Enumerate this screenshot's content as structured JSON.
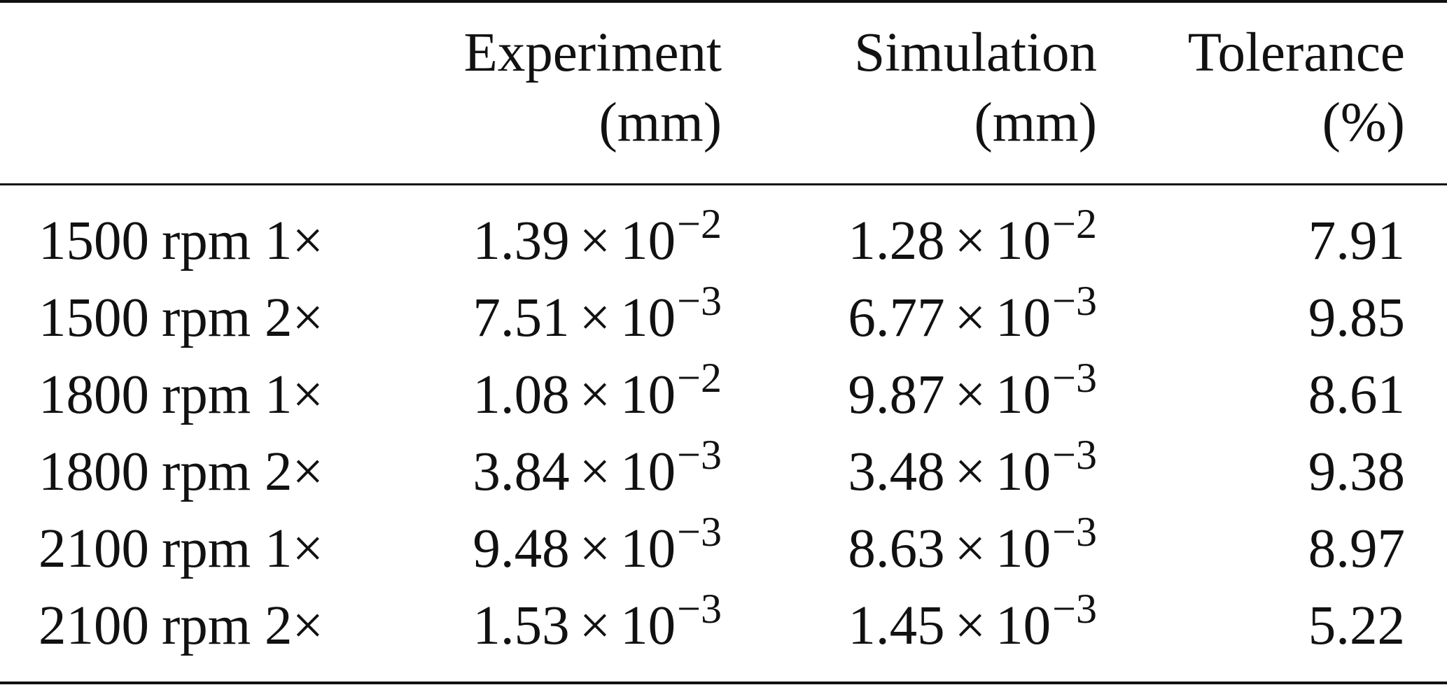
{
  "table": {
    "columns": [
      {
        "line1": "Experiment",
        "line2": "(mm)"
      },
      {
        "line1": "Simulation",
        "line2": "(mm)"
      },
      {
        "line1": "Tolerance",
        "line2": "(%)"
      }
    ],
    "rows": [
      {
        "speed": "1500",
        "unit": "rpm",
        "order": "1×",
        "exp_mant": "1.39",
        "exp_exp": "−2",
        "sim_mant": "1.28",
        "sim_exp": "−2",
        "tol": "7.91"
      },
      {
        "speed": "1500",
        "unit": "rpm",
        "order": "2×",
        "exp_mant": "7.51",
        "exp_exp": "−3",
        "sim_mant": "6.77",
        "sim_exp": "−3",
        "tol": "9.85"
      },
      {
        "speed": "1800",
        "unit": "rpm",
        "order": "1×",
        "exp_mant": "1.08",
        "exp_exp": "−2",
        "sim_mant": "9.87",
        "sim_exp": "−3",
        "tol": "8.61"
      },
      {
        "speed": "1800",
        "unit": "rpm",
        "order": "2×",
        "exp_mant": "3.84",
        "exp_exp": "−3",
        "sim_mant": "3.48",
        "sim_exp": "−3",
        "tol": "9.38"
      },
      {
        "speed": "2100",
        "unit": "rpm",
        "order": "1×",
        "exp_mant": "9.48",
        "exp_exp": "−3",
        "sim_mant": "8.63",
        "sim_exp": "−3",
        "tol": "8.97"
      },
      {
        "speed": "2100",
        "unit": "rpm",
        "order": "2×",
        "exp_mant": "1.53",
        "exp_exp": "−3",
        "sim_mant": "1.45",
        "sim_exp": "−3",
        "tol": "5.22"
      }
    ],
    "times_sign": "×",
    "base": "10"
  }
}
